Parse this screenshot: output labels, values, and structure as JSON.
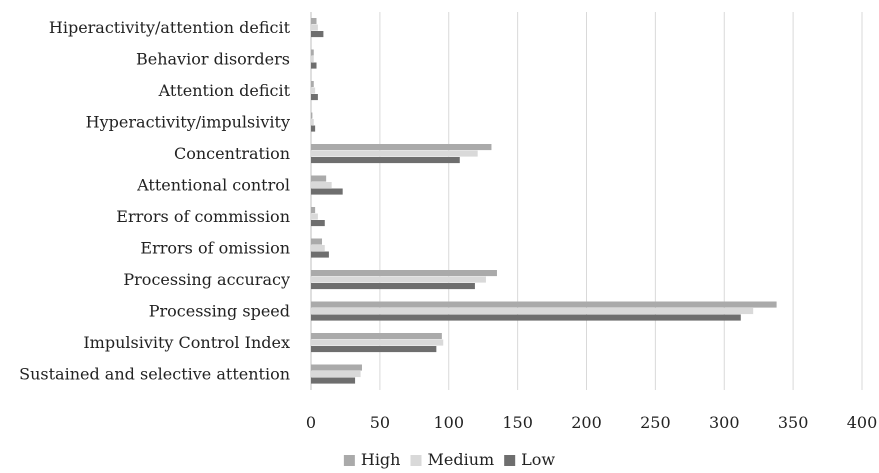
{
  "chart_data": {
    "type": "bar",
    "orientation": "horizontal",
    "title": "",
    "xlabel": "",
    "ylabel": "",
    "xlim": [
      0,
      400
    ],
    "x_ticks": [
      "0",
      "50",
      "100",
      "150",
      "200",
      "250",
      "300",
      "350",
      "400"
    ],
    "grid": "vertical",
    "legend_position": "bottom",
    "categories": [
      "Hiperactivity/attention deficit",
      "Behavior disorders",
      "Attention deficit",
      "Hyperactivity/impulsivity",
      "Concentration",
      "Attentional control",
      "Errors of commission",
      "Errors of omission",
      "Processing accuracy",
      "Processing speed",
      "Impulsivity Control Index",
      "Sustained and selective attention"
    ],
    "series": [
      {
        "name": "High",
        "color": "#aaaaaa",
        "values": [
          4,
          2,
          2,
          1,
          131,
          11,
          3,
          8,
          135,
          338,
          95,
          37
        ]
      },
      {
        "name": "Medium",
        "color": "#d9d9d9",
        "values": [
          5,
          2,
          3,
          2,
          121,
          15,
          5,
          10,
          127,
          321,
          96,
          36
        ]
      },
      {
        "name": "Low",
        "color": "#6e6e6e",
        "values": [
          9,
          4,
          5,
          3,
          108,
          23,
          10,
          13,
          119,
          312,
          91,
          32
        ]
      }
    ]
  }
}
